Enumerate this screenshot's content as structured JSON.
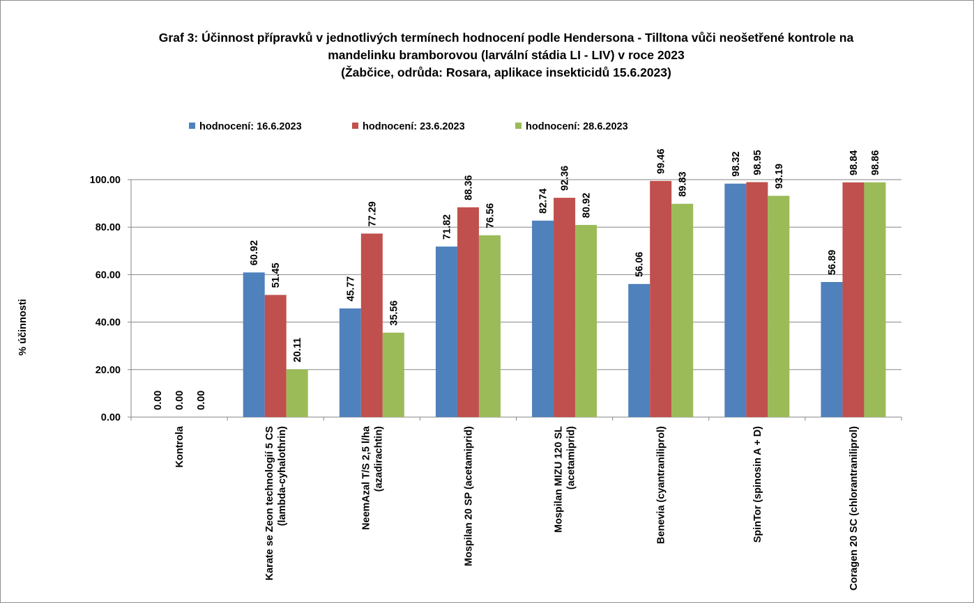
{
  "chart_data": {
    "type": "bar",
    "title_lines": [
      "Graf 3: Účinnost přípravků v jednotlivých termínech hodnocení podle Hendersona - Tilltona vůči neošetřené kontrole na",
      "mandelinku bramborovou (larvální stádia LI - LIV) v roce 2023",
      "(Žabčice, odrůda: Rosara, aplikace insekticidů 15.6.2023)"
    ],
    "ylabel": "% účinnosti",
    "xlabel": "",
    "ylim": [
      0,
      100
    ],
    "yticks": [
      "0.00",
      "20.00",
      "40.00",
      "60.00",
      "80.00",
      "100.00"
    ],
    "grid": true,
    "legend_position": "top",
    "categories": [
      [
        "Kontrola"
      ],
      [
        "Karate se Zeon technologií 5 CS",
        "(lambda-cyhalothrin)"
      ],
      [
        "NeemAzal T/S 2,5 l/ha",
        "(azadirachtin)"
      ],
      [
        "Mospilan 20 SP (acetamiprid)"
      ],
      [
        "Mospilan MIZU 120 SL",
        "(acetamiprid)"
      ],
      [
        "Benevia (cyantraniliprol)"
      ],
      [
        "SpinTor (spinosin A + D)"
      ],
      [
        "Coragen 20 SC (chlorantraniliprol)"
      ]
    ],
    "series": [
      {
        "name": "hodnocení: 16.6.2023",
        "color": "#4f81bd",
        "values": [
          0,
          60.92,
          45.77,
          71.82,
          82.74,
          56.06,
          98.32,
          56.89
        ],
        "labels": [
          "0.00",
          "60.92",
          "45.77",
          "71.82",
          "82.74",
          "56.06",
          "98.32",
          "56.89"
        ]
      },
      {
        "name": "hodnocení: 23.6.2023",
        "color": "#c0504d",
        "values": [
          0,
          51.45,
          77.29,
          88.36,
          92.36,
          99.46,
          98.95,
          98.84
        ],
        "labels": [
          "0.00",
          "51.45",
          "77.29",
          "88.36",
          "92.36",
          "99.46",
          "98.95",
          "98.84"
        ]
      },
      {
        "name": "hodnocení: 28.6.2023",
        "color": "#9bbb59",
        "values": [
          0,
          20.11,
          35.56,
          76.56,
          80.92,
          89.83,
          93.19,
          98.86
        ],
        "labels": [
          "0.00",
          "20.11",
          "35.56",
          "76.56",
          "80.92",
          "89.83",
          "93.19",
          "98.86"
        ]
      }
    ]
  }
}
